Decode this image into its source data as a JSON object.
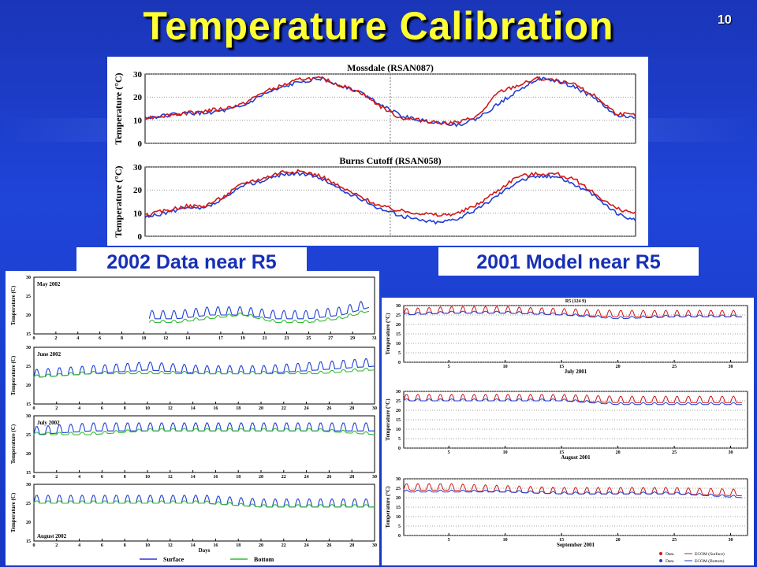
{
  "slide": {
    "title": "Temperature Calibration",
    "number": "10",
    "caption_left": "2002 Data near R5",
    "caption_right": "2001 Model near R5"
  },
  "colors": {
    "observed": "#1f3fd6",
    "model_red": "#d01818",
    "surface": "#3333dd",
    "bottom": "#33bb33"
  },
  "chart_data": [
    {
      "type": "line",
      "title": "Mossdale (RSAN087)",
      "ylabel": "Temperature (°C)",
      "ylim": [
        0,
        30
      ],
      "yticks": [
        0,
        10,
        20,
        30
      ],
      "grid": true,
      "x": [
        0,
        0.04,
        0.08,
        0.12,
        0.16,
        0.2,
        0.24,
        0.28,
        0.32,
        0.36,
        0.4,
        0.44,
        0.48,
        0.52,
        0.56,
        0.6,
        0.64,
        0.68,
        0.72,
        0.76,
        0.8,
        0.84,
        0.88,
        0.92,
        0.96,
        1.0
      ],
      "series": [
        {
          "color": "blue",
          "values": [
            11,
            12,
            13,
            13,
            14,
            16,
            21,
            24,
            27,
            28,
            25,
            22,
            17,
            12,
            10,
            9,
            8,
            11,
            17,
            23,
            28,
            27,
            24,
            19,
            12,
            11
          ]
        },
        {
          "color": "red",
          "values": [
            11,
            12,
            13,
            14,
            15,
            17,
            22,
            25,
            28,
            28,
            25,
            22,
            16,
            11,
            10,
            9,
            9,
            12,
            22,
            25,
            28,
            27,
            25,
            20,
            13,
            12
          ]
        }
      ]
    },
    {
      "type": "line",
      "title": "Burns Cutoff (RSAN058)",
      "ylabel": "Temperature (°C)",
      "ylim": [
        0,
        30
      ],
      "yticks": [
        0,
        10,
        20,
        30
      ],
      "grid": true,
      "x": [
        0,
        0.04,
        0.08,
        0.12,
        0.16,
        0.2,
        0.24,
        0.28,
        0.32,
        0.36,
        0.4,
        0.44,
        0.48,
        0.52,
        0.56,
        0.6,
        0.64,
        0.68,
        0.72,
        0.76,
        0.8,
        0.84,
        0.88,
        0.92,
        0.96,
        1.0
      ],
      "series": [
        {
          "color": "blue",
          "values": [
            8,
            10,
            12,
            12,
            16,
            22,
            24,
            27,
            27,
            25,
            20,
            16,
            12,
            9,
            7,
            6,
            8,
            12,
            18,
            24,
            26,
            26,
            22,
            17,
            10,
            7
          ]
        },
        {
          "color": "red",
          "values": [
            9,
            11,
            13,
            13,
            17,
            23,
            25,
            28,
            28,
            26,
            21,
            17,
            13,
            11,
            10,
            9,
            10,
            14,
            20,
            26,
            27,
            27,
            24,
            18,
            12,
            10
          ]
        }
      ]
    },
    {
      "type": "line",
      "title": "May 2002",
      "ylabel": "Temperature (C)",
      "ylim": [
        15,
        30
      ],
      "yticks": [
        15,
        20,
        25,
        30
      ],
      "xticks": [
        0,
        2,
        4,
        6,
        8,
        10,
        12,
        14,
        17,
        19,
        21,
        23,
        25,
        27,
        29,
        31
      ],
      "x": [
        10.5,
        13,
        16,
        19,
        22,
        25,
        28,
        30.5
      ],
      "series": [
        {
          "name": "Surface",
          "color": "blue",
          "values": [
            19,
            19,
            20,
            20,
            19,
            19,
            20,
            22
          ]
        },
        {
          "name": "Bottom",
          "color": "green",
          "values": [
            18,
            18,
            19,
            20,
            18,
            18,
            19,
            21
          ]
        }
      ]
    },
    {
      "type": "line",
      "title": "June 2002",
      "ylabel": "Temperature (C)",
      "ylim": [
        15,
        30
      ],
      "yticks": [
        15,
        20,
        25,
        30
      ],
      "xticks": [
        0,
        2,
        4,
        6,
        8,
        10,
        12,
        14,
        16,
        18,
        20,
        22,
        24,
        26,
        28,
        30
      ],
      "x": [
        0,
        5,
        10,
        15,
        20,
        25,
        30
      ],
      "series": [
        {
          "name": "Surface",
          "color": "blue",
          "values": [
            22,
            23,
            24,
            23,
            23,
            24,
            25
          ]
        },
        {
          "name": "Bottom",
          "color": "green",
          "values": [
            22,
            23,
            23,
            23,
            23,
            23,
            24
          ]
        }
      ]
    },
    {
      "type": "line",
      "title": "July 2002",
      "ylabel": "Temperature (C)",
      "ylim": [
        15,
        30
      ],
      "yticks": [
        15,
        20,
        25,
        30
      ],
      "xticks": [
        0,
        2,
        4,
        6,
        8,
        10,
        12,
        14,
        16,
        18,
        20,
        22,
        24,
        26,
        28,
        30
      ],
      "x": [
        0,
        5,
        10,
        15,
        20,
        25,
        30
      ],
      "series": [
        {
          "name": "Surface",
          "color": "blue",
          "values": [
            25,
            26,
            26,
            26,
            26,
            26,
            26
          ]
        },
        {
          "name": "Bottom",
          "color": "green",
          "values": [
            25,
            25,
            26,
            26,
            26,
            26,
            25
          ]
        }
      ]
    },
    {
      "type": "line",
      "title": "August 2002",
      "ylabel": "Temperature (C)",
      "xlabel": "Days",
      "ylim": [
        15,
        30
      ],
      "yticks": [
        15,
        20,
        25,
        30
      ],
      "xticks": [
        0,
        2,
        4,
        6,
        8,
        10,
        12,
        14,
        16,
        18,
        20,
        22,
        24,
        26,
        28,
        30
      ],
      "x": [
        0,
        5,
        10,
        15,
        20,
        25,
        30
      ],
      "series": [
        {
          "name": "Surface",
          "color": "blue",
          "values": [
            25,
            25,
            25,
            25,
            24,
            24,
            24
          ]
        },
        {
          "name": "Bottom",
          "color": "green",
          "values": [
            25,
            25,
            25,
            25,
            24,
            24,
            24
          ]
        }
      ],
      "legend": [
        "Surface",
        "Bottom"
      ]
    },
    {
      "type": "line",
      "title": "R5 (124 9)",
      "xlabel": "July 2001",
      "ylabel": "Temperature (°C)",
      "ylim": [
        0,
        30
      ],
      "yticks": [
        0,
        5,
        10,
        15,
        20,
        25,
        30
      ],
      "xticks": [
        5,
        10,
        15,
        20,
        25,
        30
      ],
      "x": [
        1,
        5,
        10,
        15,
        20,
        25,
        31
      ],
      "series": [
        {
          "name": "ECOM (Surface)",
          "color": "red",
          "values": [
            25,
            26,
            26,
            25,
            24,
            24,
            24
          ]
        },
        {
          "name": "ECOM (Bottom)",
          "color": "blue",
          "values": [
            25,
            26,
            26,
            25,
            23,
            24,
            24
          ]
        }
      ]
    },
    {
      "type": "line",
      "xlabel": "August 2001",
      "ylabel": "Temperature (°C)",
      "ylim": [
        0,
        30
      ],
      "yticks": [
        0,
        5,
        10,
        15,
        20,
        25,
        30
      ],
      "xticks": [
        5,
        10,
        15,
        20,
        25,
        30
      ],
      "x": [
        1,
        5,
        10,
        15,
        20,
        25,
        31
      ],
      "series": [
        {
          "name": "ECOM (Surface)",
          "color": "red",
          "values": [
            25,
            25,
            25,
            25,
            24,
            24,
            24
          ]
        },
        {
          "name": "ECOM (Bottom)",
          "color": "blue",
          "values": [
            25,
            25,
            25,
            25,
            23,
            23,
            23
          ]
        }
      ]
    },
    {
      "type": "line",
      "xlabel": "September 2001",
      "ylabel": "Temperature (°C)",
      "ylim": [
        0,
        30
      ],
      "yticks": [
        0,
        5,
        10,
        15,
        20,
        25,
        30
      ],
      "xticks": [
        5,
        10,
        15,
        20,
        25,
        30
      ],
      "x": [
        1,
        5,
        10,
        15,
        20,
        25,
        31
      ],
      "series": [
        {
          "name": "ECOM (Surface)",
          "color": "red",
          "values": [
            24,
            24,
            23,
            22,
            22,
            22,
            21
          ]
        },
        {
          "name": "ECOM (Bottom)",
          "color": "blue",
          "values": [
            23,
            23,
            23,
            22,
            22,
            22,
            20
          ]
        }
      ],
      "legend": [
        "Data",
        "ECOM (Surface)",
        "Data",
        "ECOM (Bottom)"
      ]
    }
  ]
}
